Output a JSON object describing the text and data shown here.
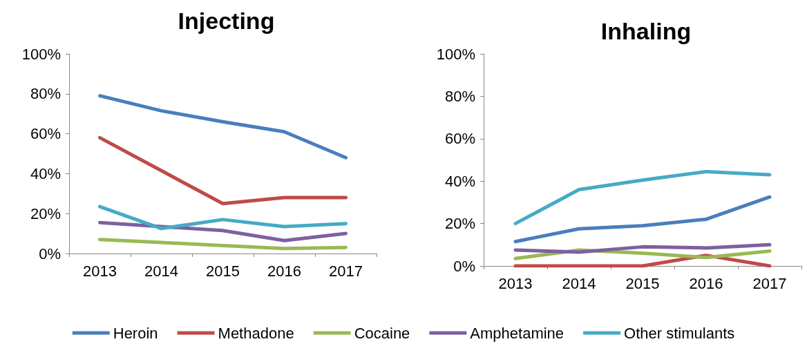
{
  "chart_data": [
    {
      "type": "line",
      "title": "Injecting",
      "categories": [
        "2013",
        "2014",
        "2015",
        "2016",
        "2017"
      ],
      "series": [
        {
          "name": "Heroin",
          "color": "#4a7ebb",
          "values": [
            79,
            71.5,
            66,
            61,
            48
          ]
        },
        {
          "name": "Methadone",
          "color": "#be4b48",
          "values": [
            58,
            41.5,
            25,
            28,
            28
          ]
        },
        {
          "name": "Cocaine",
          "color": "#98b954",
          "values": [
            7,
            5.5,
            4,
            2.5,
            3
          ]
        },
        {
          "name": "Amphetamine",
          "color": "#7d60a0",
          "values": [
            15.5,
            13.5,
            11.5,
            6.5,
            10
          ]
        },
        {
          "name": "Other stimulants",
          "color": "#46aac5",
          "values": [
            23.5,
            12.5,
            17,
            13.5,
            15
          ]
        }
      ],
      "ylim": [
        0,
        100
      ],
      "yticks": [
        {
          "value": 0,
          "label": "0%"
        },
        {
          "value": 20,
          "label": "20%"
        },
        {
          "value": 40,
          "label": "40%"
        },
        {
          "value": 60,
          "label": "60%"
        },
        {
          "value": 80,
          "label": "80%"
        },
        {
          "value": 100,
          "label": "100%"
        }
      ],
      "grid": false,
      "legend": "bottom",
      "marker": "none",
      "line_style": "solid"
    },
    {
      "type": "line",
      "title": "Inhaling",
      "categories": [
        "2013",
        "2014",
        "2015",
        "2016",
        "2017"
      ],
      "series": [
        {
          "name": "Heroin",
          "color": "#4a7ebb",
          "values": [
            11.5,
            17.5,
            19,
            22,
            32.5
          ]
        },
        {
          "name": "Methadone",
          "color": "#be4b48",
          "values": [
            0,
            0,
            0,
            5,
            0
          ]
        },
        {
          "name": "Cocaine",
          "color": "#98b954",
          "values": [
            3.5,
            7.5,
            6,
            4,
            7
          ]
        },
        {
          "name": "Amphetamine",
          "color": "#7d60a0",
          "values": [
            7.5,
            6.5,
            9,
            8.5,
            10
          ]
        },
        {
          "name": "Other stimulants",
          "color": "#46aac5",
          "values": [
            20,
            36,
            40.5,
            44.5,
            43
          ]
        }
      ],
      "ylim": [
        0,
        100
      ],
      "yticks": [
        {
          "value": 0,
          "label": "0%"
        },
        {
          "value": 20,
          "label": "20%"
        },
        {
          "value": 40,
          "label": "40%"
        },
        {
          "value": 60,
          "label": "60%"
        },
        {
          "value": 80,
          "label": "80%"
        },
        {
          "value": 100,
          "label": "100%"
        }
      ],
      "grid": false,
      "legend": false,
      "marker": "none",
      "line_style": "solid"
    }
  ]
}
